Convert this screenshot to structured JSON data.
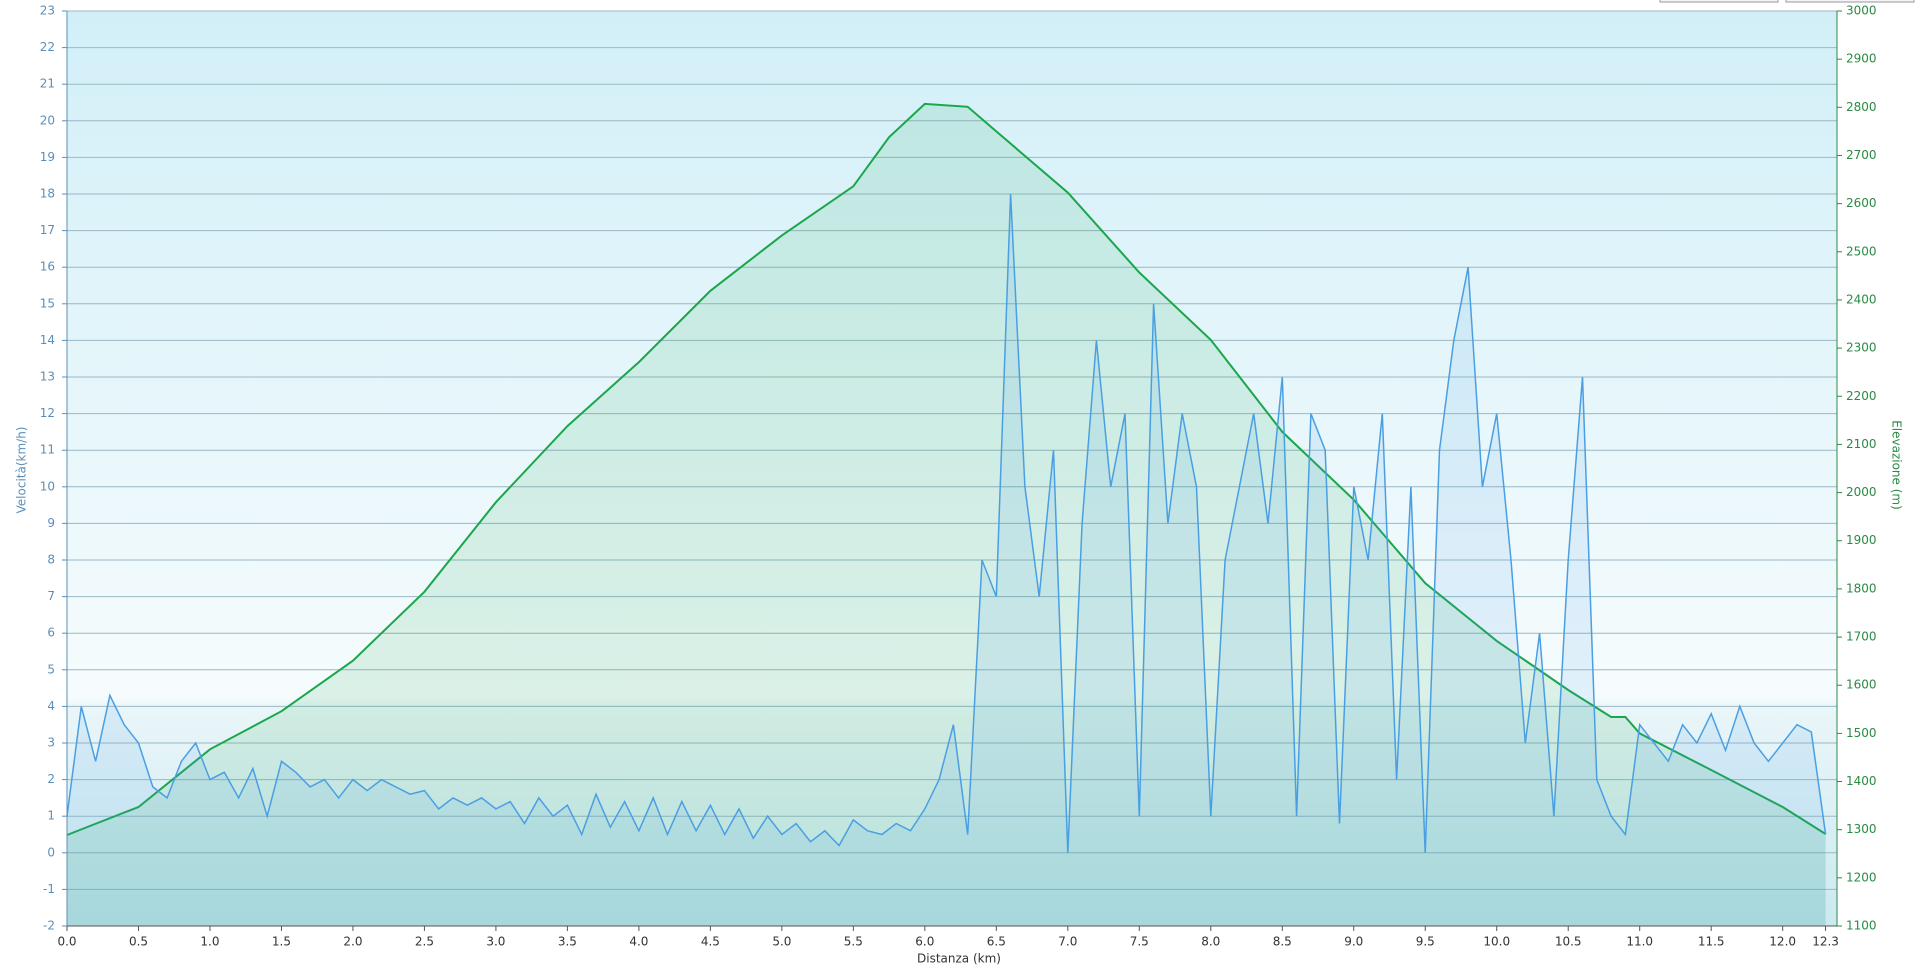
{
  "chart_data": {
    "type": "line",
    "xlabel": "Distanza  (km)",
    "ylabel": "Velocità(km/h)",
    "y2label": "Elevazione (m)",
    "xlim": [
      0,
      12.38
    ],
    "xticks": [
      {
        "value": 0,
        "label": "0.0"
      },
      0.5,
      {
        "value": 1,
        "label": "1.0"
      },
      1.5,
      {
        "value": 2,
        "label": "2.0"
      },
      2.5,
      {
        "value": 3,
        "label": "3.0"
      },
      3.5,
      {
        "value": 4,
        "label": "4.0"
      },
      4.5,
      {
        "value": 5,
        "label": "5.0"
      },
      5.5,
      {
        "value": 6,
        "label": "6.0"
      },
      6.5,
      {
        "value": 7,
        "label": "7.0"
      },
      7.5,
      {
        "value": 8,
        "label": "8.0"
      },
      8.5,
      {
        "value": 9,
        "label": "9.0"
      },
      9.5,
      {
        "value": 10,
        "label": "10.0"
      },
      10.5,
      {
        "value": 11,
        "label": "11.0"
      },
      11.5,
      {
        "value": 12,
        "label": "12.0"
      },
      12.3
    ],
    "ylim": [
      -2,
      23
    ],
    "yticks": [
      -2,
      -1,
      0,
      1,
      2,
      3,
      4,
      5,
      6,
      7,
      8,
      9,
      10,
      11,
      12,
      13,
      14,
      15,
      16,
      17,
      18,
      19,
      20,
      21,
      22,
      23
    ],
    "y2lim": [
      1100,
      3000
    ],
    "y2ticks": [
      1100,
      1200,
      1300,
      1400,
      1500,
      1600,
      1700,
      1800,
      1900,
      2000,
      2100,
      2200,
      2300,
      2400,
      2500,
      2600,
      2700,
      2800,
      2900,
      3000
    ],
    "grid": true,
    "series": [
      {
        "name": "Velocità",
        "color": "#4a9fe3",
        "axis": "y",
        "x": [
          0,
          0.1,
          0.2,
          0.3,
          0.4,
          0.5,
          0.6,
          0.7,
          0.8,
          0.9,
          1,
          1.1,
          1.2,
          1.3,
          1.4,
          1.5,
          1.6,
          1.7,
          1.8,
          1.9,
          2,
          2.1,
          2.2,
          2.3,
          2.4,
          2.5,
          2.6,
          2.7,
          2.8,
          2.9,
          3,
          3.1,
          3.2,
          3.3,
          3.4,
          3.5,
          3.6,
          3.7,
          3.8,
          3.9,
          4,
          4.1,
          4.2,
          4.3,
          4.4,
          4.5,
          4.6,
          4.7,
          4.8,
          4.9,
          5,
          5.1,
          5.2,
          5.3,
          5.4,
          5.5,
          5.6,
          5.7,
          5.8,
          5.9,
          6,
          6.1,
          6.2,
          6.3,
          6.4,
          6.5,
          6.6,
          6.7,
          6.8,
          6.9,
          7,
          7.1,
          7.2,
          7.3,
          7.4,
          7.5,
          7.6,
          7.7,
          7.8,
          7.9,
          8,
          8.1,
          8.2,
          8.3,
          8.4,
          8.5,
          8.6,
          8.7,
          8.8,
          8.9,
          9,
          9.1,
          9.2,
          9.3,
          9.4,
          9.5,
          9.6,
          9.7,
          9.8,
          9.9,
          10,
          10.1,
          10.2,
          10.3,
          10.4,
          10.5,
          10.6,
          10.7,
          10.8,
          10.9,
          11,
          11.1,
          11.2,
          11.3,
          11.4,
          11.5,
          11.6,
          11.7,
          11.8,
          11.9,
          12,
          12.1,
          12.2,
          12.3
        ],
        "values": [
          1,
          4,
          2.5,
          4.3,
          3.5,
          3,
          1.8,
          1.5,
          2.5,
          3,
          2,
          2.2,
          1.5,
          2.3,
          1,
          2.5,
          2.2,
          1.8,
          2,
          1.5,
          2,
          1.7,
          2,
          1.8,
          1.6,
          1.7,
          1.2,
          1.5,
          1.3,
          1.5,
          1.2,
          1.4,
          0.8,
          1.5,
          1,
          1.3,
          0.5,
          1.6,
          0.7,
          1.4,
          0.6,
          1.5,
          0.5,
          1.4,
          0.6,
          1.3,
          0.5,
          1.2,
          0.4,
          1,
          0.5,
          0.8,
          0.3,
          0.6,
          0.2,
          0.9,
          0.6,
          0.5,
          0.8,
          0.6,
          1.2,
          2,
          3.5,
          0.5,
          8,
          7,
          18,
          10,
          7,
          11,
          0,
          9,
          14,
          10,
          12,
          1,
          15,
          9,
          12,
          10,
          1,
          8,
          10,
          12,
          9,
          13,
          1,
          12,
          11,
          0.8,
          10,
          8,
          12,
          2,
          10,
          0,
          11,
          14,
          16,
          10,
          12,
          8,
          3,
          6,
          1,
          8,
          13,
          2,
          1,
          0.5,
          3.5,
          3,
          2.5,
          3.5,
          3,
          3.8,
          2.8,
          4,
          3,
          2.5,
          3,
          3.5,
          3.3,
          0.5
        ]
      },
      {
        "name": "Elevazione",
        "color": "#1aa64a",
        "axis": "y2",
        "x": [
          0,
          0.5,
          1,
          1.5,
          2,
          2.5,
          3,
          3.5,
          4,
          4.5,
          5,
          5.5,
          5.75,
          6,
          6.3,
          6.5,
          7,
          7.5,
          8,
          8.5,
          9,
          9.5,
          10,
          10.5,
          10.8,
          10.9,
          11,
          11.5,
          12,
          12.3
        ],
        "values": [
          1289,
          1347,
          1467,
          1546,
          1651,
          1794,
          1980,
          2138,
          2271,
          2419,
          2534,
          2636,
          2738,
          2807,
          2801,
          2750,
          2623,
          2457,
          2317,
          2126,
          1985,
          1812,
          1692,
          1590,
          1534,
          1534,
          1500,
          1424,
          1347,
          1291
        ]
      }
    ]
  }
}
